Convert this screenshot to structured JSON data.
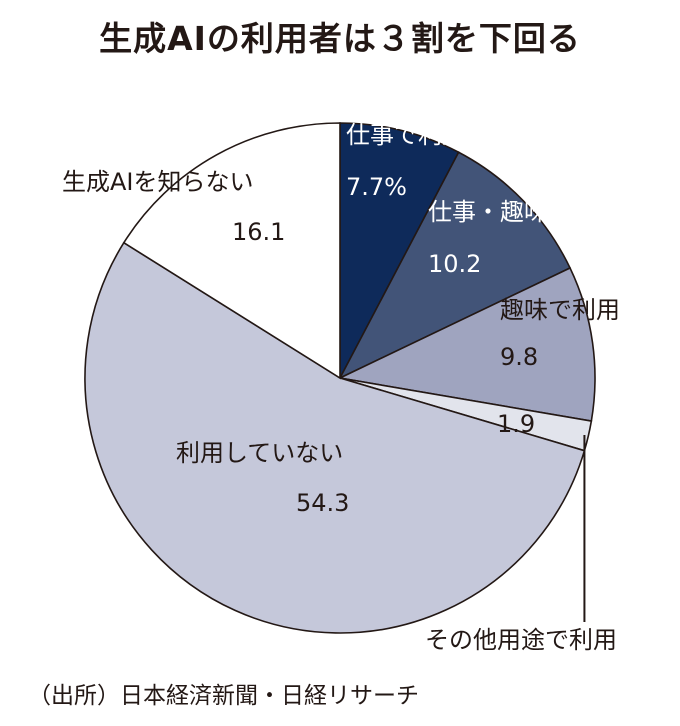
{
  "title": "生成AIの利用者は３割を下回る",
  "source": "（出所）日本経済新聞・日経リサーチ",
  "chart_data": {
    "type": "pie",
    "start_angle_deg": 0,
    "direction": "clockwise",
    "slices": [
      {
        "label": "仕事で利用",
        "value": 7.7,
        "value_text": "7.7%",
        "color": "#0e2a5a"
      },
      {
        "label": "仕事・趣味で利用",
        "value": 10.2,
        "value_text": "10.2",
        "color": "#425478"
      },
      {
        "label": "趣味で利用",
        "value": 9.8,
        "value_text": "9.8",
        "color": "#9fa4bf"
      },
      {
        "label": "その他用途で利用",
        "value": 1.9,
        "value_text": "1.9",
        "color": "#e2e4ec"
      },
      {
        "label": "利用していない",
        "value": 54.3,
        "value_text": "54.3",
        "color": "#c5c8da"
      },
      {
        "label": "生成AIを知らない",
        "value": 16.1,
        "value_text": "16.1",
        "color": "#ffffff"
      }
    ]
  }
}
